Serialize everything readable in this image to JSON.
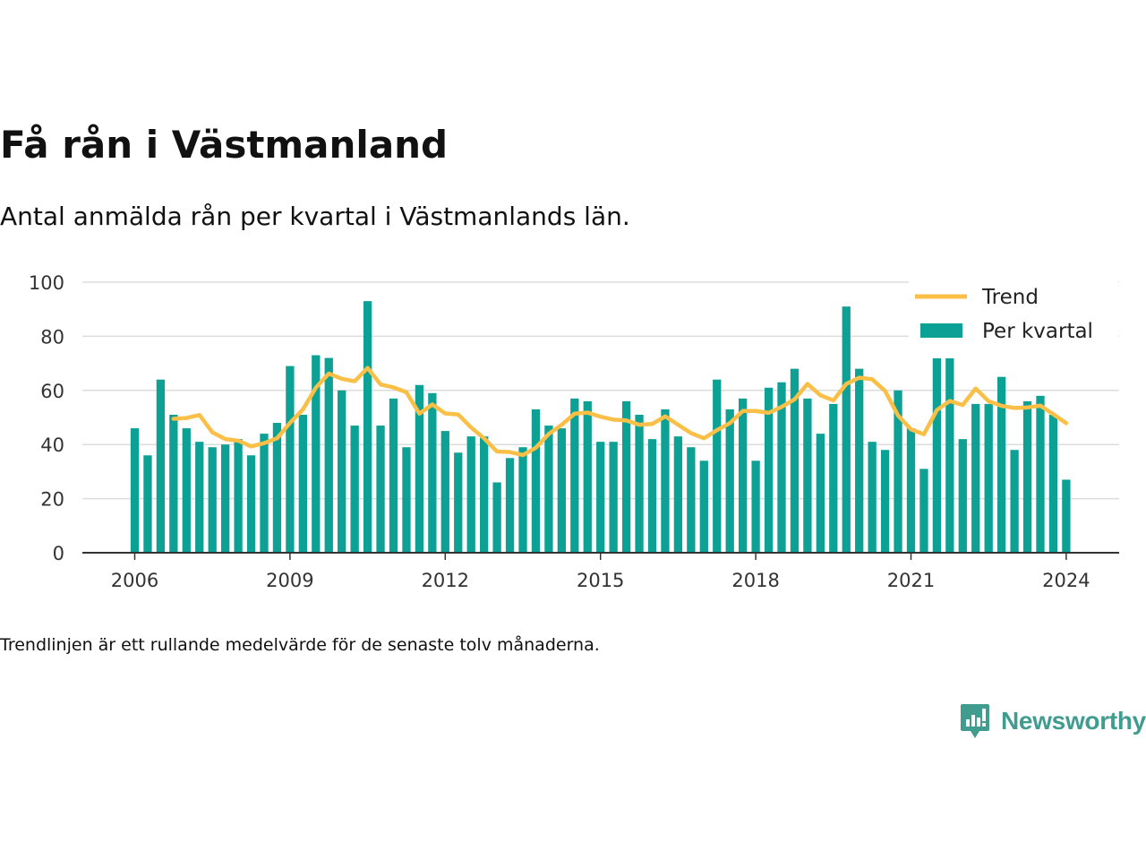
{
  "title": "Få rån i Västmanland",
  "subtitle": "Antal anmälda rån per kvartal i Västmanlands län.",
  "footnote": "Trendlinjen är ett rullande medelvärde för de senaste tolv månaderna.",
  "brand": {
    "name": "Newsworthy",
    "icon": "newsworthy-logo-icon",
    "color": "#3f9c8f"
  },
  "chart_data": {
    "type": "bar",
    "x_start": "2006 Q1",
    "x_end": "2024 Q1",
    "x_ticks": [
      "2006",
      "2009",
      "2012",
      "2015",
      "2018",
      "2021",
      "2024"
    ],
    "y_ticks": [
      "0",
      "20",
      "40",
      "60",
      "80",
      "100"
    ],
    "ylim": [
      0,
      100
    ],
    "grid": true,
    "legend_position": "top-right",
    "colors": {
      "bars": "#0da195",
      "trend": "#f9bf46",
      "grid": "#dddddd",
      "axis": "#333333"
    },
    "series": [
      {
        "name": "Per kvartal",
        "type": "bar",
        "values": [
          46,
          36,
          64,
          51,
          46,
          41,
          39,
          40,
          42,
          36,
          44,
          48,
          69,
          51,
          73,
          72,
          60,
          47,
          93,
          47,
          57,
          39,
          62,
          59,
          45,
          37,
          43,
          43,
          26,
          35,
          39,
          53,
          47,
          46,
          57,
          56,
          41,
          41,
          56,
          51,
          42,
          53,
          43,
          39,
          34,
          64,
          53,
          57,
          34,
          61,
          63,
          68,
          57,
          44,
          55,
          91,
          68,
          41,
          38,
          60,
          46,
          31,
          73,
          72,
          42,
          55,
          55,
          65,
          38,
          56,
          58,
          51,
          27
        ]
      },
      {
        "name": "Trend",
        "type": "line",
        "start_index": 3,
        "values": [
          49.5,
          49.8,
          50.9,
          44.5,
          42,
          41.4,
          39.3,
          40.5,
          42.3,
          48,
          53,
          61,
          66.2,
          64.3,
          63.4,
          68.3,
          62.2,
          61.1,
          59.3,
          51.4,
          54.8,
          51.5,
          51.1,
          46.3,
          42.3,
          37.4,
          37.2,
          36.1,
          38.8,
          43.9,
          47.3,
          51.4,
          51.8,
          50.3,
          49.2,
          48.9,
          47.3,
          47.6,
          50.4,
          47.3,
          44.2,
          42.3,
          45.3,
          47.9,
          52.4,
          52.4,
          51.7,
          53.9,
          56.7,
          62.4,
          58.2,
          56.3,
          62.4,
          64.7,
          64.1,
          59.8,
          50.7,
          45.6,
          43.8,
          52.7,
          56.1,
          54.6,
          60.7,
          56,
          54.3,
          53.5,
          53.7,
          54.4,
          51.2,
          47.9
        ]
      }
    ]
  }
}
